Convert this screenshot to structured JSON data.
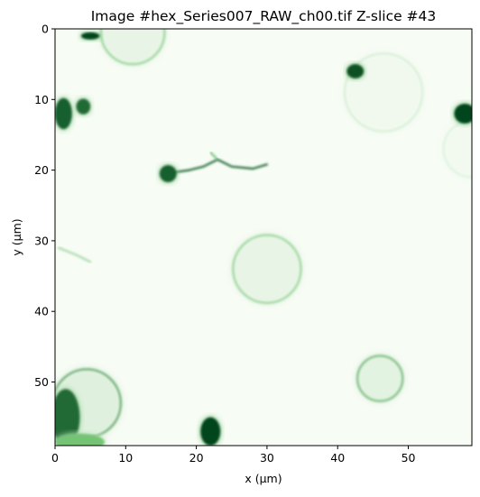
{
  "chart_data": {
    "type": "heatmap",
    "title": "Image #hex_Series007_RAW_ch00.tif Z-slice #43",
    "xlabel": "x (μm)",
    "ylabel": "y (μm)",
    "xlim": [
      0,
      59
    ],
    "ylim": [
      59,
      0
    ],
    "xticks": [
      0,
      10,
      20,
      30,
      40,
      50
    ],
    "yticks": [
      0,
      10,
      20,
      30,
      40,
      50
    ],
    "colormap": "Greens",
    "colors": {
      "low": "#f7fcf5",
      "mid": "#74c476",
      "high": "#00441b"
    },
    "grid": false,
    "features": {
      "rings": [
        {
          "label": "cell-top-left",
          "cx": 11,
          "cy": 0.5,
          "r": 4.5,
          "intensity": 0.45
        },
        {
          "label": "cell-top-right",
          "cx": 46.5,
          "cy": 9.0,
          "r": 5.5,
          "intensity": 0.15
        },
        {
          "label": "cell-center",
          "cx": 30,
          "cy": 34,
          "r": 4.8,
          "intensity": 0.45
        },
        {
          "label": "cell-lower-right",
          "cx": 46,
          "cy": 49.5,
          "r": 3.2,
          "intensity": 0.6
        },
        {
          "label": "cell-bottom-left",
          "cx": 4.5,
          "cy": 53,
          "r": 4.8,
          "intensity": 0.7
        },
        {
          "label": "cell-right-edge",
          "cx": 59,
          "cy": 17,
          "r": 4,
          "intensity": 0.12
        }
      ],
      "blobs": [
        {
          "x": 5,
          "y": 1,
          "rx": 1.3,
          "ry": 0.5,
          "intensity": 1.0
        },
        {
          "x": 42.5,
          "y": 6,
          "rx": 1.2,
          "ry": 1.0,
          "intensity": 0.95
        },
        {
          "x": 1.2,
          "y": 12,
          "rx": 1.2,
          "ry": 2.2,
          "intensity": 0.9
        },
        {
          "x": 4,
          "y": 11,
          "rx": 1.0,
          "ry": 1.1,
          "intensity": 0.85
        },
        {
          "x": 58,
          "y": 12,
          "rx": 1.5,
          "ry": 1.4,
          "intensity": 1.0
        },
        {
          "x": 16,
          "y": 20.5,
          "rx": 1.2,
          "ry": 1.2,
          "intensity": 0.9
        },
        {
          "x": 22,
          "y": 57,
          "rx": 1.4,
          "ry": 2.0,
          "intensity": 1.0
        },
        {
          "x": 1.5,
          "y": 55,
          "rx": 2.0,
          "ry": 4.0,
          "intensity": 0.85
        },
        {
          "x": 3.5,
          "y": 58.5,
          "rx": 3.5,
          "ry": 1.2,
          "intensity": 0.5
        }
      ],
      "filaments": [
        {
          "points": [
            [
              15.5,
              20.5
            ],
            [
              19,
              20
            ],
            [
              21,
              19.5
            ],
            [
              23,
              18.5
            ],
            [
              25,
              19.5
            ],
            [
              28,
              19.8
            ],
            [
              30,
              19.2
            ]
          ],
          "intensity": 0.85
        },
        {
          "points": [
            [
              22,
              17.5
            ],
            [
              23,
              18.5
            ]
          ],
          "intensity": 0.5
        },
        {
          "points": [
            [
              0.5,
              31
            ],
            [
              3,
              32
            ],
            [
              5,
              33
            ]
          ],
          "intensity": 0.3
        }
      ]
    }
  }
}
